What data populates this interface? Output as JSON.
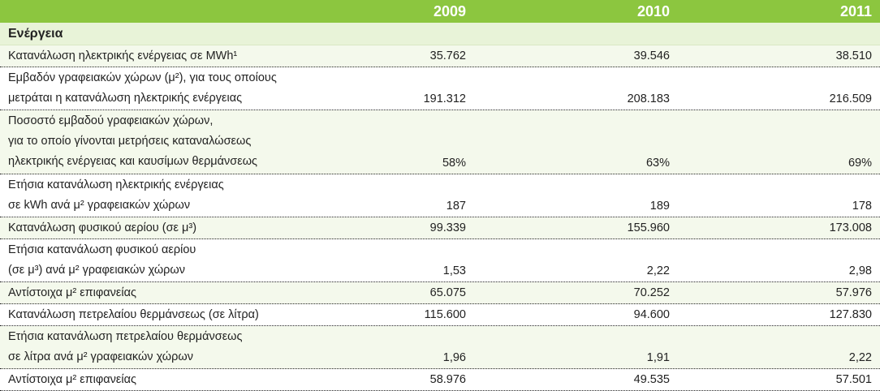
{
  "header": {
    "years": [
      "2009",
      "2010",
      "2011"
    ]
  },
  "section": {
    "title": "Ενέργεια"
  },
  "rows": [
    {
      "lines": [
        "Κατανάλωση ηλεκτρικής ενέργειας σε MWh¹"
      ],
      "values": [
        "35.762",
        "39.546",
        "38.510"
      ]
    },
    {
      "lines": [
        "Εμβαδόν γραφειακών χώρων (μ²), για τους οποίους",
        "μετράται η κατανάλωση ηλεκτρικής ενέργειας"
      ],
      "values": [
        "191.312",
        "208.183",
        "216.509"
      ]
    },
    {
      "lines": [
        "Ποσοστό εμβαδού γραφειακών χώρων,",
        "για το οποίο γίνονται μετρήσεις καταναλώσεως",
        "ηλεκτρικής ενέργειας και καυσίμων θερμάνσεως"
      ],
      "values": [
        "58%",
        "63%",
        "69%"
      ]
    },
    {
      "lines": [
        "Ετήσια κατανάλωση ηλεκτρικής ενέργειας",
        "σε kWh ανά μ²  γραφειακών χώρων"
      ],
      "values": [
        "187",
        "189",
        "178"
      ]
    },
    {
      "lines": [
        "Κατανάλωση φυσικού αερίου (σε μ³)"
      ],
      "values": [
        "99.339",
        "155.960",
        "173.008"
      ]
    },
    {
      "lines": [
        "Ετήσια κατανάλωση φυσικού αερίου",
        "(σε μ³) ανά μ² γραφειακών χώρων"
      ],
      "values": [
        "1,53",
        "2,22",
        "2,98"
      ]
    },
    {
      "lines": [
        "Αντίστοιχα μ²  επιφανείας"
      ],
      "values": [
        "65.075",
        "70.252",
        "57.976"
      ]
    },
    {
      "lines": [
        "Κατανάλωση πετρελαίου θερμάνσεως (σε λίτρα)"
      ],
      "values": [
        "115.600",
        "94.600",
        "127.830"
      ]
    },
    {
      "lines": [
        "Ετήσια κατανάλωση πετρελαίου θερμάνσεως",
        "σε λίτρα ανά μ²  γραφειακών χώρων"
      ],
      "values": [
        "1,96",
        "1,91",
        "2,22"
      ]
    },
    {
      "lines": [
        "Αντίστοιχα μ²  επιφανείας"
      ],
      "values": [
        "58.976",
        "49.535",
        "57.501"
      ]
    }
  ]
}
